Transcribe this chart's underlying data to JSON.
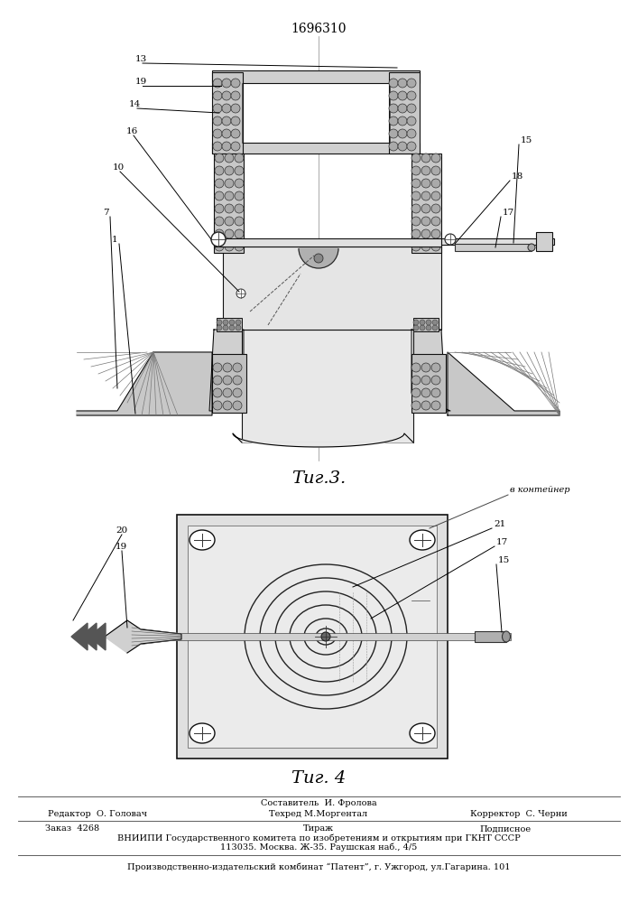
{
  "patent_number": "1696310",
  "fig3_caption": "Τиг.3.",
  "fig4_caption": "Τиг. 4",
  "footer_line1_mid1": "Составитель  И. Фролова",
  "footer_line1_left": "Редактор  О. Головач",
  "footer_line1_mid2": "Техред М.Моргентал",
  "footer_line1_right": "Корректор  С. Черни",
  "footer_line2_left": "Заказ  4268",
  "footer_line2_mid": "Тираж",
  "footer_line2_right": "Подписное",
  "footer_line3": "ВНИИПИ Государственного комитета по изобретениям и открытиям при ГКНТ СССР",
  "footer_line4": "113035. Москва. Ж-35. Раушская наб., 4/5",
  "footer_line5": "Производственно-издательский комбинат “Патент”, г. Ужгород, ул.Гагарина. 101",
  "v_konteyner": "в контейнер"
}
